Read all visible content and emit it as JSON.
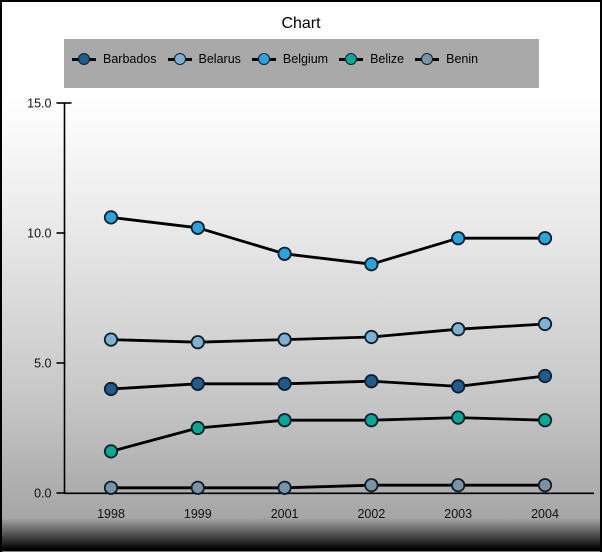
{
  "title": "Chart",
  "legend": {
    "background": "#a9a9a9",
    "items": [
      {
        "label": "Barbados",
        "color": "#1f5c8d",
        "icon": "circle-marker-icon"
      },
      {
        "label": "Belarus",
        "color": "#7fb2d0",
        "icon": "circle-marker-icon"
      },
      {
        "label": "Belgium",
        "color": "#2aa4dc",
        "icon": "circle-marker-icon"
      },
      {
        "label": "Belize",
        "color": "#0aa795",
        "icon": "circle-marker-icon"
      },
      {
        "label": "Benin",
        "color": "#7b93a4",
        "icon": "circle-marker-icon"
      }
    ]
  },
  "chart_data": {
    "type": "line",
    "title": "Chart",
    "x": [
      "1998",
      "1999",
      "2001",
      "2002",
      "2003",
      "2004"
    ],
    "series": [
      {
        "name": "Barbados",
        "color": "#1f5c8d",
        "values": [
          4.0,
          4.2,
          4.2,
          4.3,
          4.1,
          4.5
        ]
      },
      {
        "name": "Belarus",
        "color": "#7fb2d0",
        "values": [
          5.9,
          5.8,
          5.9,
          6.0,
          6.3,
          6.5
        ]
      },
      {
        "name": "Belgium",
        "color": "#2aa4dc",
        "values": [
          10.6,
          10.2,
          9.2,
          8.8,
          9.8,
          9.8
        ]
      },
      {
        "name": "Belize",
        "color": "#0aa795",
        "values": [
          1.6,
          2.5,
          2.8,
          2.8,
          2.9,
          2.8
        ]
      },
      {
        "name": "Benin",
        "color": "#7b93a4",
        "values": [
          0.2,
          0.2,
          0.2,
          0.3,
          0.3,
          0.3
        ]
      }
    ],
    "xlabel": "",
    "ylabel": "",
    "ylim": [
      0,
      15
    ],
    "yticks": [
      {
        "value": 0,
        "label": "0.0"
      },
      {
        "value": 5,
        "label": "5.0"
      },
      {
        "value": 10,
        "label": "10.0"
      },
      {
        "value": 15,
        "label": "15.0"
      }
    ],
    "grid": false,
    "legend_position": "top",
    "line_color": "#000000",
    "marker_outline": "#0d1f2d",
    "axis_color": "#000000"
  }
}
